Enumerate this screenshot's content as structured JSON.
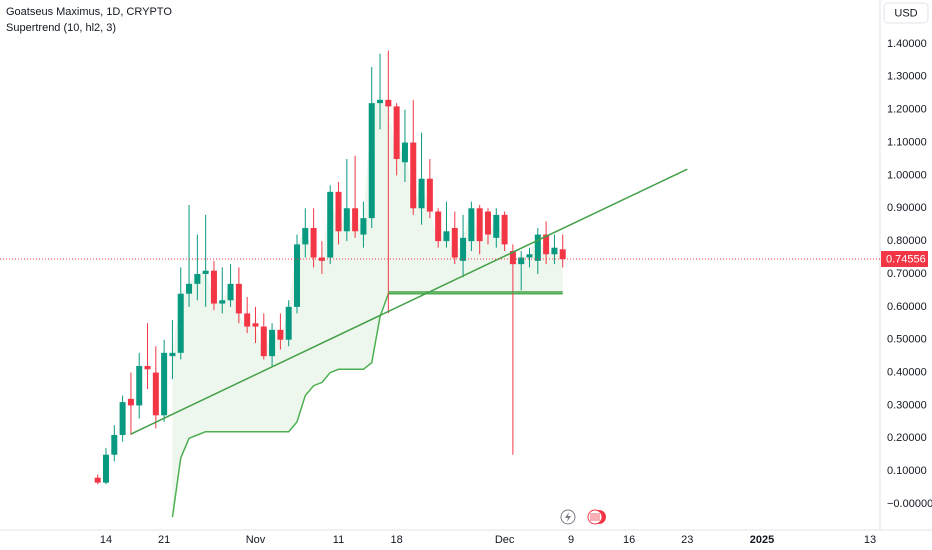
{
  "chart_data": {
    "type": "candlestick",
    "title": "Goatseus Maximus, 1D, CRYPTO",
    "indicator": "Supertrend (10, hl2, 3)",
    "currency": "USD",
    "categories": [
      null,
      "14",
      null,
      null,
      null,
      null,
      null,
      null,
      "21",
      null,
      null,
      null,
      null,
      null,
      null,
      null,
      null,
      null,
      null,
      "Nov",
      null,
      null,
      null,
      null,
      null,
      null,
      null,
      null,
      null,
      "11",
      null,
      null,
      null,
      null,
      null,
      null,
      "18",
      null,
      null,
      null,
      null,
      null,
      null,
      null,
      null,
      null,
      null,
      null,
      null,
      "Dec",
      null,
      null,
      null,
      null,
      null,
      null,
      null,
      "9",
      null,
      null,
      null,
      null,
      null,
      null,
      "16",
      null,
      null,
      null,
      null,
      null,
      null,
      "23",
      null,
      null,
      null,
      null,
      null,
      null,
      null,
      null,
      "2025",
      null,
      null,
      null,
      null,
      null,
      null,
      null,
      null,
      null,
      null,
      null,
      null,
      "13"
    ],
    "open": [
      0.08,
      0.065,
      0.15,
      0.21,
      0.32,
      0.3,
      0.42,
      0.4,
      0.27,
      0.45,
      0.46,
      0.64,
      0.67,
      0.7,
      0.71,
      0.61,
      0.62,
      0.67,
      0.58,
      0.55,
      0.54,
      0.45,
      0.53,
      0.5,
      0.6,
      0.79,
      0.84,
      0.75,
      0.75,
      0.95,
      0.83,
      0.9,
      0.82,
      0.87,
      1.22,
      1.23,
      1.21,
      1.04,
      1.1,
      0.9,
      0.99,
      0.89,
      0.8,
      0.84,
      0.74,
      0.8,
      0.9,
      0.89,
      0.81,
      0.88,
      0.77,
      0.73,
      0.75,
      0.74,
      0.82,
      0.76,
      0.775,
      null,
      null,
      null,
      null,
      null,
      null,
      null,
      null,
      null,
      null,
      null,
      null,
      null,
      null,
      null,
      null,
      null,
      null,
      null,
      null,
      null,
      null,
      null,
      null,
      null,
      null,
      null,
      null,
      null,
      null,
      null,
      null,
      null,
      null,
      null,
      null,
      null
    ],
    "high": [
      0.09,
      0.17,
      0.24,
      0.33,
      0.4,
      0.46,
      0.55,
      0.48,
      0.5,
      0.56,
      0.72,
      0.91,
      0.82,
      0.88,
      0.74,
      0.72,
      0.73,
      0.72,
      0.63,
      0.6,
      0.58,
      0.55,
      0.58,
      0.62,
      0.82,
      0.9,
      0.9,
      0.8,
      0.97,
      0.98,
      1.05,
      1.06,
      0.92,
      1.33,
      1.37,
      1.38,
      1.22,
      1.2,
      1.23,
      1.13,
      1.05,
      0.9,
      0.92,
      0.89,
      0.88,
      0.92,
      0.91,
      0.9,
      0.9,
      0.89,
      0.79,
      0.77,
      0.78,
      0.84,
      0.86,
      0.82,
      0.82,
      null,
      null,
      null,
      null,
      null,
      null,
      null,
      null,
      null,
      null,
      null,
      null,
      null,
      null,
      null,
      null,
      null,
      null,
      null,
      null,
      null,
      null,
      null,
      null,
      null,
      null,
      null,
      null,
      null,
      null,
      null,
      null,
      null,
      null,
      null,
      null,
      null
    ],
    "low": [
      0.06,
      0.06,
      0.13,
      0.19,
      0.21,
      0.26,
      0.35,
      0.23,
      0.25,
      0.38,
      0.44,
      0.6,
      0.62,
      0.6,
      0.59,
      0.58,
      0.6,
      0.55,
      0.52,
      0.49,
      0.44,
      0.42,
      0.47,
      0.48,
      0.58,
      0.75,
      0.72,
      0.7,
      0.73,
      0.79,
      0.8,
      0.81,
      0.78,
      0.84,
      1.14,
      0.58,
      1.0,
      0.98,
      0.88,
      0.85,
      0.87,
      0.78,
      0.78,
      0.73,
      0.69,
      0.77,
      0.76,
      0.79,
      0.78,
      0.77,
      0.15,
      0.65,
      0.72,
      0.7,
      0.73,
      0.73,
      0.72,
      null,
      null,
      null,
      null,
      null,
      null,
      null,
      null,
      null,
      null,
      null,
      null,
      null,
      null,
      null,
      null,
      null,
      null,
      null,
      null,
      null,
      null,
      null,
      null,
      null,
      null,
      null,
      null,
      null,
      null,
      null,
      null,
      null,
      null,
      null,
      null,
      null
    ],
    "close": [
      0.065,
      0.15,
      0.21,
      0.31,
      0.3,
      0.42,
      0.41,
      0.27,
      0.46,
      0.46,
      0.64,
      0.67,
      0.7,
      0.71,
      0.61,
      0.62,
      0.67,
      0.58,
      0.54,
      0.54,
      0.45,
      0.53,
      0.5,
      0.6,
      0.79,
      0.84,
      0.75,
      0.74,
      0.95,
      0.83,
      0.9,
      0.83,
      0.87,
      1.22,
      1.23,
      1.21,
      1.05,
      1.1,
      0.9,
      0.99,
      0.89,
      0.8,
      0.83,
      0.75,
      0.81,
      0.9,
      0.8,
      0.82,
      0.88,
      0.79,
      0.73,
      0.75,
      0.76,
      0.82,
      0.76,
      0.78,
      0.74556,
      null,
      null,
      null,
      null,
      null,
      null,
      null,
      null,
      null,
      null,
      null,
      null,
      null,
      null,
      null,
      null,
      null,
      null,
      null,
      null,
      null,
      null,
      null,
      null,
      null,
      null,
      null,
      null,
      null,
      null,
      null,
      null,
      null,
      null,
      null,
      null,
      null
    ],
    "supertrend": [
      null,
      null,
      null,
      null,
      null,
      null,
      null,
      null,
      null,
      -0.04,
      0.14,
      0.2,
      0.21,
      0.22,
      0.22,
      0.22,
      0.22,
      0.22,
      0.22,
      0.22,
      0.22,
      0.22,
      0.22,
      0.22,
      0.25,
      0.33,
      0.36,
      0.37,
      0.4,
      0.41,
      0.41,
      0.41,
      0.41,
      0.43,
      0.57,
      0.64,
      0.64,
      0.64,
      0.64,
      0.64,
      0.64,
      0.64,
      0.64,
      0.64,
      0.64,
      0.64,
      0.64,
      0.64,
      0.64,
      0.64,
      0.64,
      0.64,
      0.64,
      0.64,
      0.64,
      0.64,
      0.64,
      null,
      null,
      null,
      null,
      null,
      null,
      null,
      null,
      null,
      null,
      null,
      null,
      null,
      null,
      null,
      null,
      null,
      null,
      null,
      null,
      null,
      null,
      null,
      null,
      null,
      null,
      null,
      null,
      null,
      null,
      null,
      null,
      null,
      null,
      null,
      null,
      null
    ],
    "up_color": "#089981",
    "down_color": "#f23645",
    "supertrend_color": "#4caf50",
    "last_price": 0.74556,
    "drawings": [
      {
        "x": [
          4,
          71
        ],
        "y": [
          0.213,
          1.019
        ]
      },
      {
        "x": [
          35,
          56
        ],
        "y": [
          0.645,
          0.645
        ]
      }
    ],
    "ylim": [
      -0.0791,
      1.5338
    ],
    "yticks": [
      {
        "value": 1.4,
        "label": "1.40000"
      },
      {
        "value": 1.3,
        "label": "1.30000"
      },
      {
        "value": 1.2,
        "label": "1.20000"
      },
      {
        "value": 1.1,
        "label": "1.10000"
      },
      {
        "value": 1.0,
        "label": "1.00000"
      },
      {
        "value": 0.9,
        "label": "0.90000"
      },
      {
        "value": 0.8,
        "label": "0.80000"
      },
      {
        "value": 0.7,
        "label": "0.70000"
      },
      {
        "value": 0.6,
        "label": "0.60000"
      },
      {
        "value": 0.5,
        "label": "0.50000"
      },
      {
        "value": 0.4,
        "label": "0.40000"
      },
      {
        "value": 0.3,
        "label": "0.30000"
      },
      {
        "value": 0.2,
        "label": "0.20000"
      },
      {
        "value": 0.1,
        "label": "0.10000"
      },
      {
        "value": 0,
        "label": "−0.00000"
      }
    ],
    "grid": false
  }
}
